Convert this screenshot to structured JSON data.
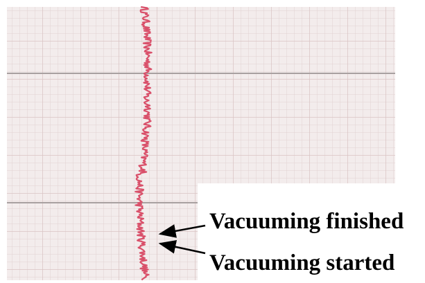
{
  "annotations": {
    "finished": "Vacuuming finished",
    "started": "Vacuuming started"
  }
}
